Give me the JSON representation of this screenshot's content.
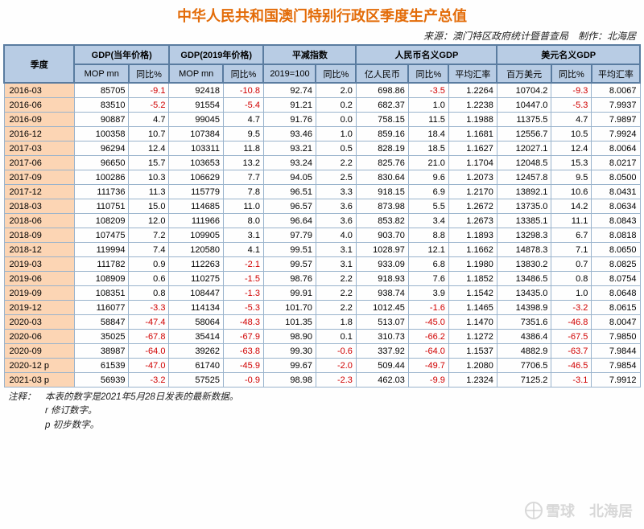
{
  "title": "中华人民共和国澳门特别行政区季度生产总值",
  "source": "来源：澳门特区政府统计暨普查局　制作：北海居",
  "headers": {
    "quarter": "季度",
    "group1": "GDP(当年价格)",
    "group2": "GDP(2019年价格)",
    "group3": "平减指数",
    "group4": "人民币名义GDP",
    "group5": "美元名义GDP",
    "sub": {
      "mop": "MOP mn",
      "yoy": "同比%",
      "idx": "2019=100",
      "cny": "亿人民币",
      "avg": "平均汇率",
      "usd": "百万美元"
    }
  },
  "colwidths": [
    "70",
    "54",
    "40",
    "54",
    "40",
    "52",
    "40",
    "52",
    "40",
    "48",
    "54",
    "40",
    "48"
  ],
  "rows": [
    {
      "q": "2016-03",
      "c": [
        "85705",
        "-9.1",
        "92418",
        "-10.8",
        "92.74",
        "2.0",
        "698.86",
        "-3.5",
        "1.2264",
        "10704.2",
        "-9.3",
        "8.0067"
      ]
    },
    {
      "q": "2016-06",
      "c": [
        "83510",
        "-5.2",
        "91554",
        "-5.4",
        "91.21",
        "0.2",
        "682.37",
        "1.0",
        "1.2238",
        "10447.0",
        "-5.3",
        "7.9937"
      ]
    },
    {
      "q": "2016-09",
      "c": [
        "90887",
        "4.7",
        "99045",
        "4.7",
        "91.76",
        "0.0",
        "758.15",
        "11.5",
        "1.1988",
        "11375.5",
        "4.7",
        "7.9897"
      ]
    },
    {
      "q": "2016-12",
      "c": [
        "100358",
        "10.7",
        "107384",
        "9.5",
        "93.46",
        "1.0",
        "859.16",
        "18.4",
        "1.1681",
        "12556.7",
        "10.5",
        "7.9924"
      ]
    },
    {
      "q": "2017-03",
      "c": [
        "96294",
        "12.4",
        "103311",
        "11.8",
        "93.21",
        "0.5",
        "828.19",
        "18.5",
        "1.1627",
        "12027.1",
        "12.4",
        "8.0064"
      ]
    },
    {
      "q": "2017-06",
      "c": [
        "96650",
        "15.7",
        "103653",
        "13.2",
        "93.24",
        "2.2",
        "825.76",
        "21.0",
        "1.1704",
        "12048.5",
        "15.3",
        "8.0217"
      ]
    },
    {
      "q": "2017-09",
      "c": [
        "100286",
        "10.3",
        "106629",
        "7.7",
        "94.05",
        "2.5",
        "830.64",
        "9.6",
        "1.2073",
        "12457.8",
        "9.5",
        "8.0500"
      ]
    },
    {
      "q": "2017-12",
      "c": [
        "111736",
        "11.3",
        "115779",
        "7.8",
        "96.51",
        "3.3",
        "918.15",
        "6.9",
        "1.2170",
        "13892.1",
        "10.6",
        "8.0431"
      ]
    },
    {
      "q": "2018-03",
      "c": [
        "110751",
        "15.0",
        "114685",
        "11.0",
        "96.57",
        "3.6",
        "873.98",
        "5.5",
        "1.2672",
        "13735.0",
        "14.2",
        "8.0634"
      ]
    },
    {
      "q": "2018-06",
      "c": [
        "108209",
        "12.0",
        "111966",
        "8.0",
        "96.64",
        "3.6",
        "853.82",
        "3.4",
        "1.2673",
        "13385.1",
        "11.1",
        "8.0843"
      ]
    },
    {
      "q": "2018-09",
      "c": [
        "107475",
        "7.2",
        "109905",
        "3.1",
        "97.79",
        "4.0",
        "903.70",
        "8.8",
        "1.1893",
        "13298.3",
        "6.7",
        "8.0818"
      ]
    },
    {
      "q": "2018-12",
      "c": [
        "119994",
        "7.4",
        "120580",
        "4.1",
        "99.51",
        "3.1",
        "1028.97",
        "12.1",
        "1.1662",
        "14878.3",
        "7.1",
        "8.0650"
      ]
    },
    {
      "q": "2019-03",
      "c": [
        "111782",
        "0.9",
        "112263",
        "-2.1",
        "99.57",
        "3.1",
        "933.09",
        "6.8",
        "1.1980",
        "13830.2",
        "0.7",
        "8.0825"
      ]
    },
    {
      "q": "2019-06",
      "c": [
        "108909",
        "0.6",
        "110275",
        "-1.5",
        "98.76",
        "2.2",
        "918.93",
        "7.6",
        "1.1852",
        "13486.5",
        "0.8",
        "8.0754"
      ]
    },
    {
      "q": "2019-09",
      "c": [
        "108351",
        "0.8",
        "108447",
        "-1.3",
        "99.91",
        "2.2",
        "938.74",
        "3.9",
        "1.1542",
        "13435.0",
        "1.0",
        "8.0648"
      ]
    },
    {
      "q": "2019-12",
      "c": [
        "116077",
        "-3.3",
        "114134",
        "-5.3",
        "101.70",
        "2.2",
        "1012.45",
        "-1.6",
        "1.1465",
        "14398.9",
        "-3.2",
        "8.0615"
      ]
    },
    {
      "q": "2020-03",
      "c": [
        "58847",
        "-47.4",
        "58064",
        "-48.3",
        "101.35",
        "1.8",
        "513.07",
        "-45.0",
        "1.1470",
        "7351.6",
        "-46.8",
        "8.0047"
      ]
    },
    {
      "q": "2020-06",
      "c": [
        "35025",
        "-67.8",
        "35414",
        "-67.9",
        "98.90",
        "0.1",
        "310.73",
        "-66.2",
        "1.1272",
        "4386.4",
        "-67.5",
        "7.9850"
      ]
    },
    {
      "q": "2020-09",
      "c": [
        "38987",
        "-64.0",
        "39262",
        "-63.8",
        "99.30",
        "-0.6",
        "337.92",
        "-64.0",
        "1.1537",
        "4882.9",
        "-63.7",
        "7.9844"
      ]
    },
    {
      "q": "2020-12 p",
      "c": [
        "61539",
        "-47.0",
        "61740",
        "-45.9",
        "99.67",
        "-2.0",
        "509.44",
        "-49.7",
        "1.2080",
        "7706.5",
        "-46.5",
        "7.9854"
      ]
    },
    {
      "q": "2021-03 p",
      "c": [
        "56939",
        "-3.2",
        "57525",
        "-0.9",
        "98.98",
        "-2.3",
        "462.03",
        "-9.9",
        "1.2324",
        "7125.2",
        "-3.1",
        "7.9912"
      ]
    }
  ],
  "notes": {
    "line1": "注释：　本表的数字是2021年5月28日发表的最新数据。",
    "line2": "　　　　r 修订数字。",
    "line3": "　　　　p 初步数字。"
  },
  "watermark": "雪球　北海居"
}
